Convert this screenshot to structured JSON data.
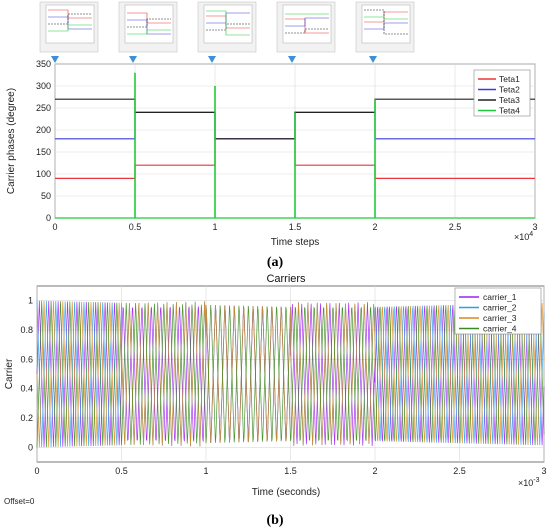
{
  "chart_data": [
    {
      "type": "line",
      "subfigure_label": "(a)",
      "title": "",
      "xlabel": "Time steps",
      "ylabel": "Carrier phases (degree)",
      "x_exponent_label": "×10",
      "x_exponent_power": "4",
      "xlim": [
        0,
        3
      ],
      "ylim": [
        0,
        350
      ],
      "xticks": [
        "0",
        "0.5",
        "1",
        "1.5",
        "2",
        "2.5",
        "3"
      ],
      "yticks": [
        "0",
        "50",
        "100",
        "150",
        "200",
        "250",
        "300",
        "350"
      ],
      "grid": true,
      "legend_position": "top-right",
      "series": [
        {
          "name": "Teta1",
          "color": "#e8373a",
          "steps": [
            [
              0,
              0.5,
              90
            ],
            [
              0.5,
              1,
              120
            ],
            [
              1,
              1.5,
              180
            ],
            [
              1.5,
              2,
              120
            ],
            [
              2,
              3,
              90
            ]
          ]
        },
        {
          "name": "Teta2",
          "color": "#3b3bd9",
          "steps": [
            [
              0,
              0.5,
              180
            ],
            [
              0.5,
              1,
              240
            ],
            [
              1,
              1.5,
              180
            ],
            [
              1.5,
              2,
              240
            ],
            [
              2,
              3,
              180
            ]
          ]
        },
        {
          "name": "Teta3",
          "color": "#222222",
          "steps": [
            [
              0,
              0.5,
              270
            ],
            [
              0.5,
              1,
              240
            ],
            [
              1,
              1.5,
              180
            ],
            [
              1.5,
              2,
              240
            ],
            [
              2,
              3,
              270
            ]
          ]
        },
        {
          "name": "Teta4",
          "color": "#22c93a",
          "steps": [
            [
              0,
              3,
              0
            ]
          ],
          "spikes": [
            [
              0.5,
              330
            ],
            [
              1,
              300
            ],
            [
              1.5,
              240
            ],
            [
              2,
              270
            ]
          ]
        }
      ]
    },
    {
      "type": "line",
      "subfigure_label": "(b)",
      "title": "Carriers",
      "xlabel": "Time (seconds)",
      "ylabel": "Carrier",
      "offset_label": "Offset=0",
      "x_exponent_label": "×10",
      "x_exponent_power": "-3",
      "xlim": [
        0,
        3
      ],
      "ylim": [
        -0.1,
        1.1
      ],
      "xticks": [
        "0",
        "0.5",
        "1",
        "1.5",
        "2",
        "2.5",
        "3"
      ],
      "yticks": [
        "0",
        "0.2",
        "0.4",
        "0.6",
        "0.8",
        "1"
      ],
      "grid": true,
      "legend_position": "top-right",
      "carrier_period": 0.0556,
      "series": [
        {
          "name": "carrier_1",
          "color": "#a020f0",
          "phases_deg": [
            90,
            120,
            180,
            120,
            90
          ]
        },
        {
          "name": "carrier_2",
          "color": "#2a9df4",
          "phases_deg": [
            180,
            240,
            180,
            240,
            180
          ]
        },
        {
          "name": "carrier_3",
          "color": "#d98a1f",
          "phases_deg": [
            270,
            240,
            180,
            240,
            270
          ]
        },
        {
          "name": "carrier_4",
          "color": "#3a8a1f",
          "phases_deg": [
            0,
            0,
            0,
            0,
            0
          ]
        }
      ],
      "segment_bounds": [
        0,
        0.5,
        1,
        1.5,
        2,
        3
      ]
    }
  ]
}
